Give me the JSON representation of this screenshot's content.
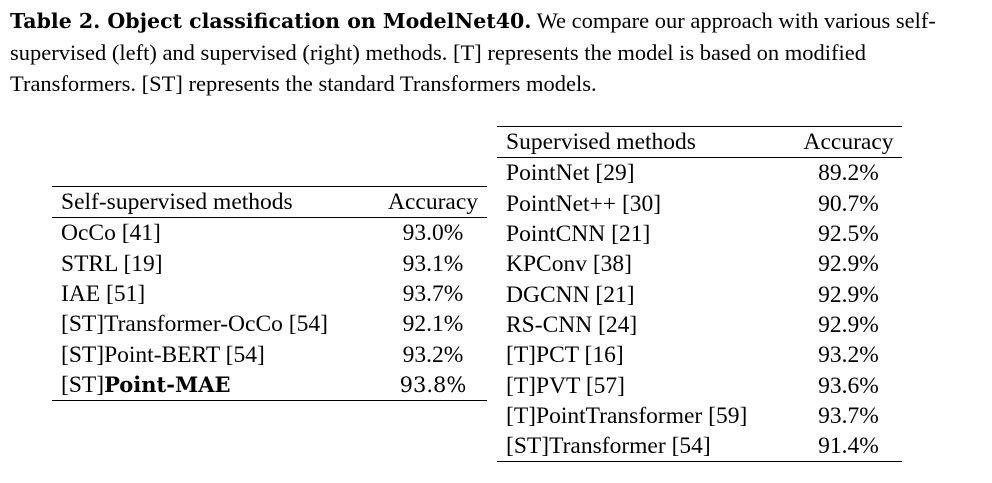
{
  "caption": {
    "label": "Table 2. Object classification on ModelNet40.",
    "text": " We compare our approach with various self-supervised (left) and supervised (right) methods. [T] represents the model is based on modified Transformers. [ST] represents the standard Transformers models."
  },
  "self_supervised": {
    "header": {
      "method": "Self-supervised methods",
      "accuracy": "Accuracy"
    },
    "rows": [
      {
        "prefix": "",
        "name": "OcCo [41]",
        "accuracy": "93.0%"
      },
      {
        "prefix": "",
        "name": "STRL [19]",
        "accuracy": "93.1%"
      },
      {
        "prefix": "",
        "name": "IAE [51]",
        "accuracy": "93.7%"
      },
      {
        "prefix": "",
        "name": "[ST]Transformer-OcCo [54]",
        "accuracy": "92.1%"
      },
      {
        "prefix": "",
        "name": "[ST]Point-BERT [54]",
        "accuracy": "93.2%"
      }
    ],
    "highlight_row": {
      "prefix": "[ST]",
      "name": "Point-MAE",
      "accuracy": "93.8%"
    }
  },
  "supervised": {
    "header": {
      "method": "Supervised methods",
      "accuracy": "Accuracy"
    },
    "rows": [
      {
        "name": "PointNet [29]",
        "accuracy": "89.2%"
      },
      {
        "name": "PointNet++ [30]",
        "accuracy": "90.7%"
      },
      {
        "name": "PointCNN [21]",
        "accuracy": "92.5%"
      },
      {
        "name": "KPConv [38]",
        "accuracy": "92.9%"
      },
      {
        "name": "DGCNN [21]",
        "accuracy": "92.9%"
      },
      {
        "name": "RS-CNN [24]",
        "accuracy": "92.9%"
      },
      {
        "name": "[T]PCT [16]",
        "accuracy": "93.2%"
      },
      {
        "name": "[T]PVT [57]",
        "accuracy": "93.6%"
      },
      {
        "name": "[T]PointTransformer [59]",
        "accuracy": "93.7%"
      },
      {
        "name": "[ST]Transformer [54]",
        "accuracy": "91.4%"
      }
    ]
  }
}
